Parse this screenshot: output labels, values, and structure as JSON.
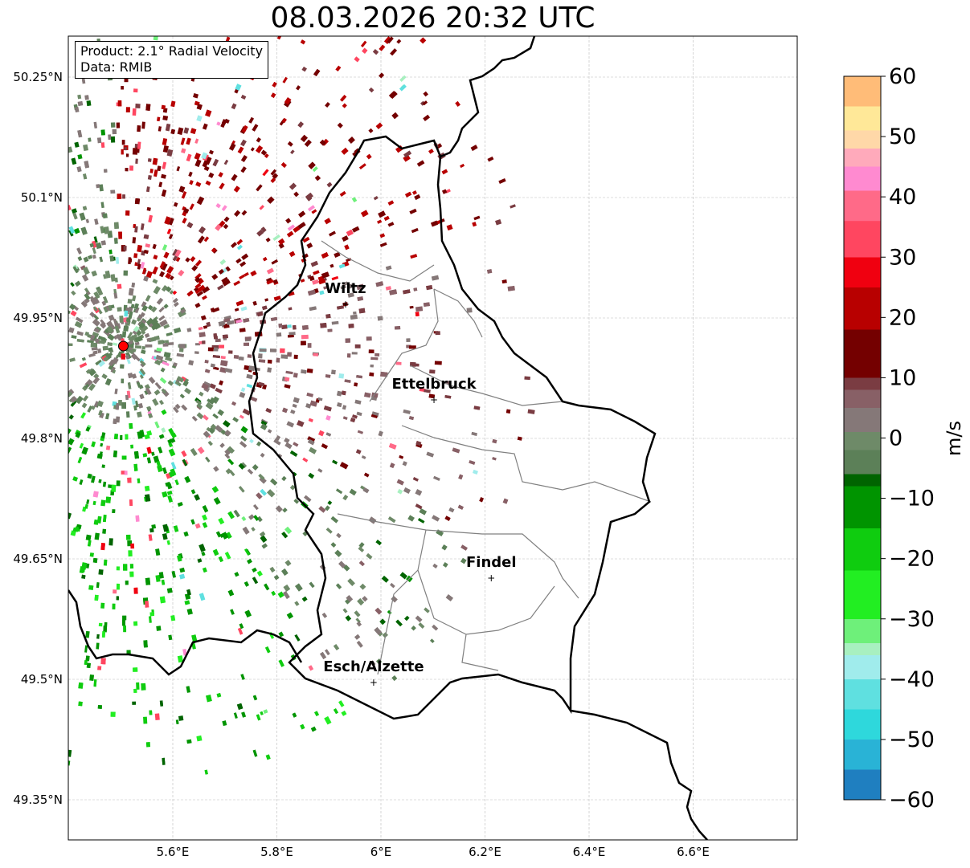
{
  "title": "08.03.2026 20:32 UTC",
  "infobox": {
    "product": "Product: 2.1° Radial Velocity",
    "source": "Data: RMIB"
  },
  "axes": {
    "lat_ticks": [
      "50.25°N",
      "50.1°N",
      "49.95°N",
      "49.8°N",
      "49.65°N",
      "49.5°N",
      "49.35°N"
    ],
    "lon_ticks": [
      "5.6°E",
      "5.8°E",
      "6°E",
      "6.2°E",
      "6.4°E",
      "6.6°E"
    ],
    "grid": true
  },
  "cities": [
    {
      "name": "Wiltz",
      "lat": 49.967,
      "lon": 5.932
    },
    {
      "name": "Ettelbruck",
      "lat": 49.848,
      "lon": 6.102
    },
    {
      "name": "Findel",
      "lat": 49.626,
      "lon": 6.212
    },
    {
      "name": "Esch/Alzette",
      "lat": 49.496,
      "lon": 5.986
    }
  ],
  "radar_site": {
    "lat": 49.915,
    "lon": 5.505
  },
  "colorbar": {
    "label": "m/s",
    "ticks": [
      "60",
      "50",
      "40",
      "30",
      "20",
      "10",
      "0",
      "−10",
      "−20",
      "−30",
      "−40",
      "−50",
      "−60"
    ],
    "min": -60,
    "max": 60,
    "stops": [
      {
        "v": -60,
        "c": "#1f7fc0"
      },
      {
        "v": -55,
        "c": "#29b3d6"
      },
      {
        "v": -50,
        "c": "#2ed8dc"
      },
      {
        "v": -45,
        "c": "#5fe0e0"
      },
      {
        "v": -40,
        "c": "#a0ecec"
      },
      {
        "v": -36,
        "c": "#a8f0c0"
      },
      {
        "v": -34,
        "c": "#6ef07a"
      },
      {
        "v": -30,
        "c": "#22ee22"
      },
      {
        "v": -22,
        "c": "#0fcc0f"
      },
      {
        "v": -15,
        "c": "#009400"
      },
      {
        "v": -8,
        "c": "#006400"
      },
      {
        "v": -6,
        "c": "#5c8058"
      },
      {
        "v": -2,
        "c": "#6e8a68"
      },
      {
        "v": 1,
        "c": "#857878"
      },
      {
        "v": 5,
        "c": "#886066"
      },
      {
        "v": 8,
        "c": "#7a3c42"
      },
      {
        "v": 10,
        "c": "#740000"
      },
      {
        "v": 18,
        "c": "#b80000"
      },
      {
        "v": 25,
        "c": "#f00010"
      },
      {
        "v": 30,
        "c": "#ff4660"
      },
      {
        "v": 36,
        "c": "#ff6a88"
      },
      {
        "v": 41,
        "c": "#ff8ad0"
      },
      {
        "v": 45,
        "c": "#ffaabb"
      },
      {
        "v": 48,
        "c": "#ffd8a8"
      },
      {
        "v": 51,
        "c": "#ffe898"
      },
      {
        "v": 55,
        "c": "#ffbc78"
      },
      {
        "v": 60,
        "c": "#ff9a58"
      }
    ]
  }
}
